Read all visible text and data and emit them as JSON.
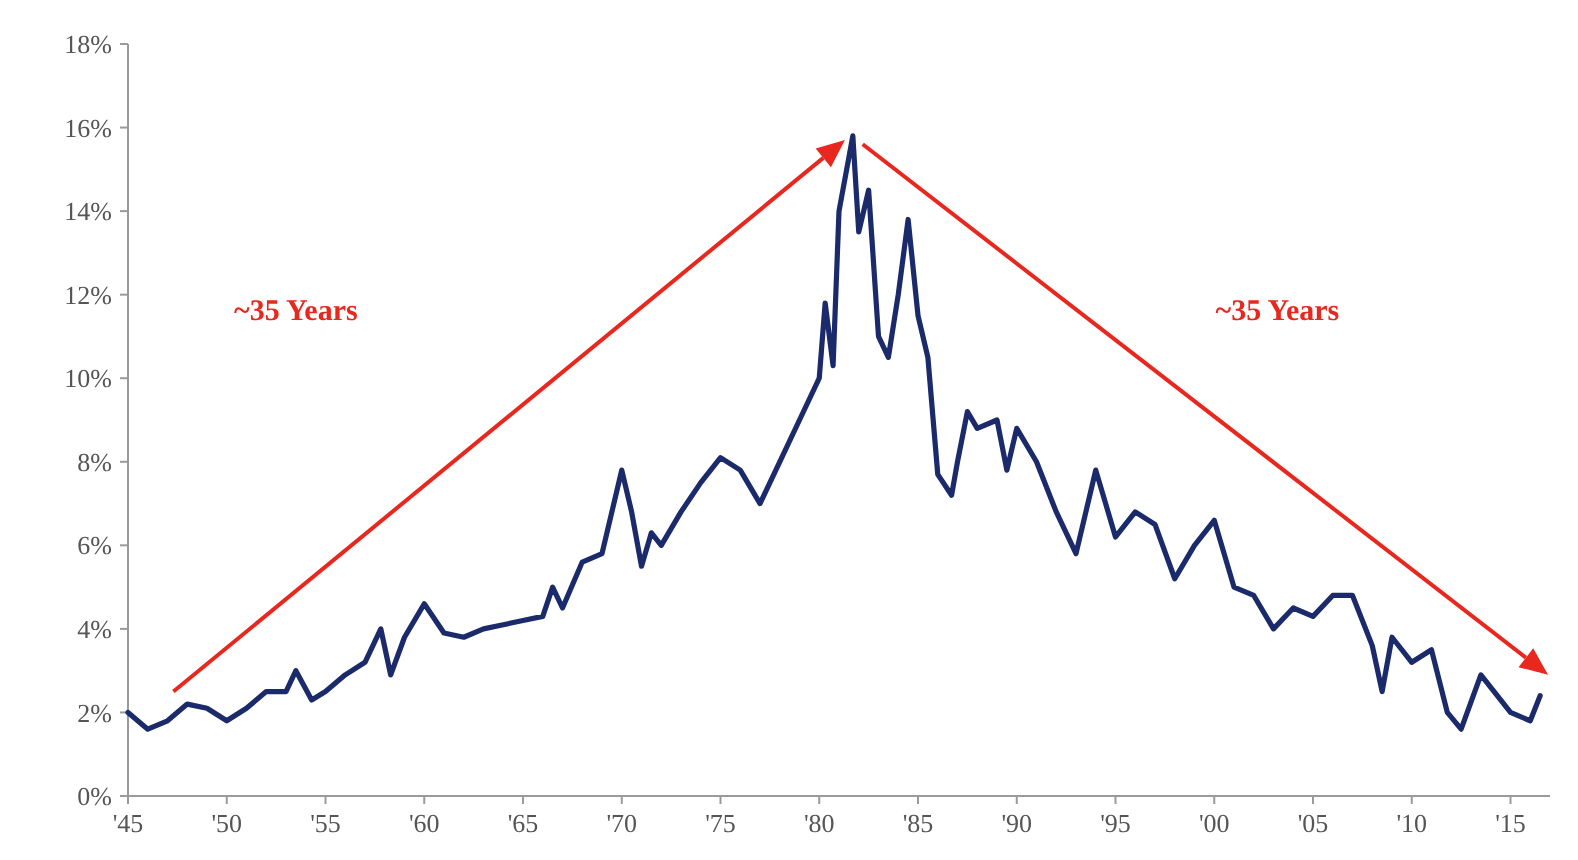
{
  "chart_data": {
    "type": "line",
    "x": [
      1945,
      1946,
      1947,
      1948,
      1949,
      1950,
      1951,
      1952,
      1953,
      1953.5,
      1954.3,
      1955,
      1956,
      1957,
      1957.8,
      1958.3,
      1959,
      1960,
      1961,
      1962,
      1963,
      1964,
      1965,
      1966,
      1966.5,
      1967,
      1968,
      1969,
      1970,
      1970.5,
      1971,
      1971.5,
      1972,
      1973,
      1974,
      1975,
      1976,
      1977,
      1978,
      1979,
      1980,
      1980.3,
      1980.7,
      1981,
      1981.7,
      1982,
      1982.5,
      1983,
      1983.5,
      1984,
      1984.5,
      1985,
      1985.5,
      1986,
      1986.7,
      1987,
      1987.5,
      1988,
      1989,
      1989.5,
      1990,
      1991,
      1992,
      1993,
      1994,
      1995,
      1996,
      1997,
      1998,
      1999,
      2000,
      2001,
      2002,
      2003,
      2004,
      2005,
      2006,
      2007,
      2008,
      2008.5,
      2009,
      2010,
      2011,
      2011.8,
      2012.5,
      2013.5,
      2014,
      2015,
      2016,
      2016.5
    ],
    "series": [
      {
        "color": "#1b2a6b",
        "values": [
          2.0,
          1.6,
          1.8,
          2.2,
          2.1,
          1.8,
          2.1,
          2.5,
          2.5,
          3.0,
          2.3,
          2.5,
          2.9,
          3.2,
          4.0,
          2.9,
          3.8,
          4.6,
          3.9,
          3.8,
          4.0,
          4.1,
          4.2,
          4.3,
          5.0,
          4.5,
          5.6,
          5.8,
          7.8,
          6.8,
          5.5,
          6.3,
          6.0,
          6.8,
          7.5,
          8.1,
          7.8,
          7.0,
          8.0,
          9.0,
          10.0,
          11.8,
          10.3,
          14.0,
          15.8,
          13.5,
          14.5,
          11.0,
          10.5,
          12.0,
          13.8,
          11.5,
          10.5,
          7.7,
          7.2,
          8.0,
          9.2,
          8.8,
          9.0,
          7.8,
          8.8,
          8.0,
          6.8,
          5.8,
          7.8,
          6.2,
          6.8,
          6.5,
          5.2,
          6.0,
          6.6,
          5.0,
          4.8,
          4.0,
          4.5,
          4.3,
          4.8,
          4.8,
          3.6,
          2.5,
          3.8,
          3.2,
          3.5,
          2.0,
          1.6,
          2.9,
          2.6,
          2.0,
          1.8,
          2.4
        ]
      }
    ],
    "xlim": [
      1945,
      2017
    ],
    "xticks": [
      {
        "value": 1945,
        "label": "'45"
      },
      {
        "value": 1950,
        "label": "'50"
      },
      {
        "value": 1955,
        "label": "'55"
      },
      {
        "value": 1960,
        "label": "'60"
      },
      {
        "value": 1965,
        "label": "'65"
      },
      {
        "value": 1970,
        "label": "'70"
      },
      {
        "value": 1975,
        "label": "'75"
      },
      {
        "value": 1980,
        "label": "'80"
      },
      {
        "value": 1985,
        "label": "'85"
      },
      {
        "value": 1990,
        "label": "'90"
      },
      {
        "value": 1995,
        "label": "'95"
      },
      {
        "value": 2000,
        "label": "'00"
      },
      {
        "value": 2005,
        "label": "'05"
      },
      {
        "value": 2010,
        "label": "'10"
      },
      {
        "value": 2015,
        "label": "'15"
      }
    ],
    "ylim": [
      0,
      18
    ],
    "yticks": [
      {
        "value": 0,
        "label": "0%"
      },
      {
        "value": 2,
        "label": "2%"
      },
      {
        "value": 4,
        "label": "4%"
      },
      {
        "value": 6,
        "label": "6%"
      },
      {
        "value": 8,
        "label": "8%"
      },
      {
        "value": 10,
        "label": "10%"
      },
      {
        "value": 12,
        "label": "12%"
      },
      {
        "value": 14,
        "label": "14%"
      },
      {
        "value": 16,
        "label": "16%"
      },
      {
        "value": 18,
        "label": "18%"
      }
    ],
    "annotations": [
      "~35 Years",
      "~35 Years"
    ],
    "grid": false,
    "line_style": "solid",
    "marker": "none"
  }
}
